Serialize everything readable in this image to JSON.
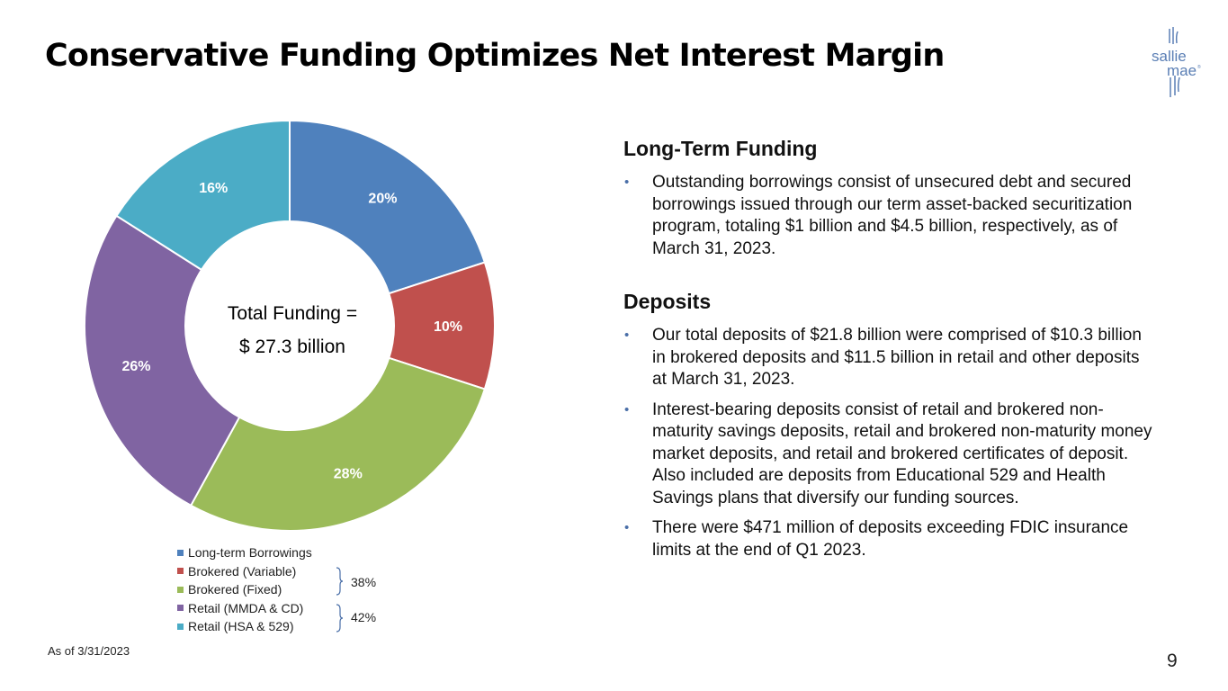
{
  "header": {
    "title": "Conservative Funding Optimizes Net Interest Margin"
  },
  "logo": {
    "line1": "sallie",
    "line2": "mae",
    "mark": "®"
  },
  "chart_data": {
    "type": "pie",
    "subtype": "donut",
    "categories": [
      "Long-term Borrowings",
      "Brokered (Variable)",
      "Brokered (Fixed)",
      "Retail (MMDA & CD)",
      "Retail (HSA & 529)"
    ],
    "values": [
      20,
      10,
      28,
      26,
      16
    ],
    "labels": [
      "20%",
      "10%",
      "28%",
      "26%",
      "16%"
    ],
    "colors": [
      "#4F81BD",
      "#C0504D",
      "#9BBB59",
      "#8064A2",
      "#4BACC6"
    ],
    "center_label_line1": "Total Funding =",
    "center_label_line2": "$ 27.3 billion",
    "legend_position": "bottom",
    "groups": [
      {
        "members": [
          "Brokered (Variable)",
          "Brokered (Fixed)"
        ],
        "label": "38%"
      },
      {
        "members": [
          "Retail (MMDA & CD)",
          "Retail (HSA & 529)"
        ],
        "label": "42%"
      }
    ]
  },
  "panel": {
    "sections": [
      {
        "heading": "Long-Term Funding",
        "bullets": [
          "Outstanding borrowings consist of unsecured debt and secured borrowings issued through our term asset-backed securitization program, totaling $1 billion and $4.5 billion, respectively, as of March 31, 2023."
        ]
      },
      {
        "heading": "Deposits",
        "bullets": [
          "Our total deposits of $21.8 billion were comprised of $10.3 billion in brokered deposits and $11.5 billion in retail and other deposits at March 31, 2023.",
          "Interest-bearing deposits consist of retail and brokered non-maturity savings deposits, retail and brokered non-maturity money market deposits, and retail and brokered certificates of deposit. Also included are deposits from Educational 529 and Health Savings plans that diversify our funding sources.",
          "There were $471 million of deposits exceeding FDIC insurance limits at the end of Q1 2023."
        ]
      }
    ],
    "bullet_marker": "•"
  },
  "footer": {
    "note": "As of 3/31/2023",
    "page_number": "9"
  },
  "colors": {
    "accent": "#4a6fa8",
    "logo": "#5b7fb5"
  }
}
